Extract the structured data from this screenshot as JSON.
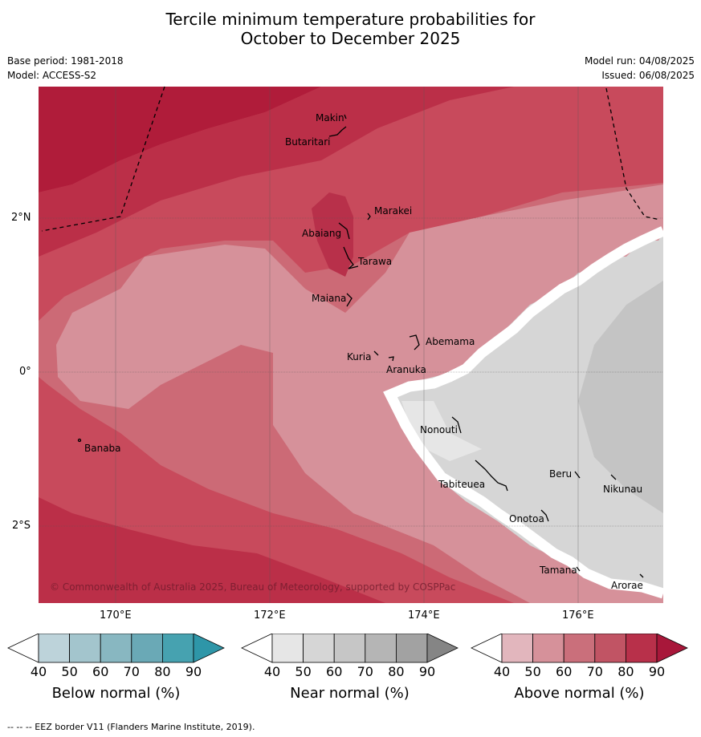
{
  "title_line1": "Tercile minimum temperature probabilities for",
  "title_line2": "October to December 2025",
  "base_period": "Base period: 1981-2018",
  "model": "Model: ACCESS-S2",
  "model_run": "Model run: 04/08/2025",
  "issued": "Issued: 06/08/2025",
  "copyright": "© Commonwealth of Australia 2025, Bureau of Meteorology, supported by COSPPac",
  "footer": "--  --  -- EEZ border V11 (Flanders Marine Institute, 2019).",
  "lon_labels": [
    "170°E",
    "172°E",
    "174°E",
    "176°E"
  ],
  "lat_labels": [
    "2°N",
    "0°",
    "2°S"
  ],
  "places": [
    "Makin",
    "Butaritari",
    "Marakei",
    "Abaiang",
    "Tarawa",
    "Maiana",
    "Abemama",
    "Kuria",
    "Aranuka",
    "Banaba",
    "Nonouti",
    "Beru",
    "Nikunau",
    "Tabiteuea",
    "Onotoa",
    "Tamana",
    "Arorae"
  ],
  "colorbars": [
    {
      "label": "Below normal (%)",
      "ticks": [
        "40",
        "50",
        "60",
        "70",
        "80",
        "90"
      ],
      "colors": [
        "#ffffff",
        "#bdd3da",
        "#a3c5cd",
        "#88b7c1",
        "#6aa9b6",
        "#46a2b0",
        "#2e96a8"
      ]
    },
    {
      "label": "Near normal (%)",
      "ticks": [
        "40",
        "50",
        "60",
        "70",
        "80",
        "90"
      ],
      "colors": [
        "#ffffff",
        "#e6e6e6",
        "#d6d6d6",
        "#c6c6c6",
        "#b5b5b5",
        "#a2a2a2",
        "#858585"
      ]
    },
    {
      "label": "Above normal (%)",
      "ticks": [
        "40",
        "50",
        "60",
        "70",
        "80",
        "90"
      ],
      "colors": [
        "#ffffff",
        "#e2b6bd",
        "#d6919a",
        "#ca6f7b",
        "#c15464",
        "#b8304a",
        "#a8173a"
      ]
    }
  ]
}
